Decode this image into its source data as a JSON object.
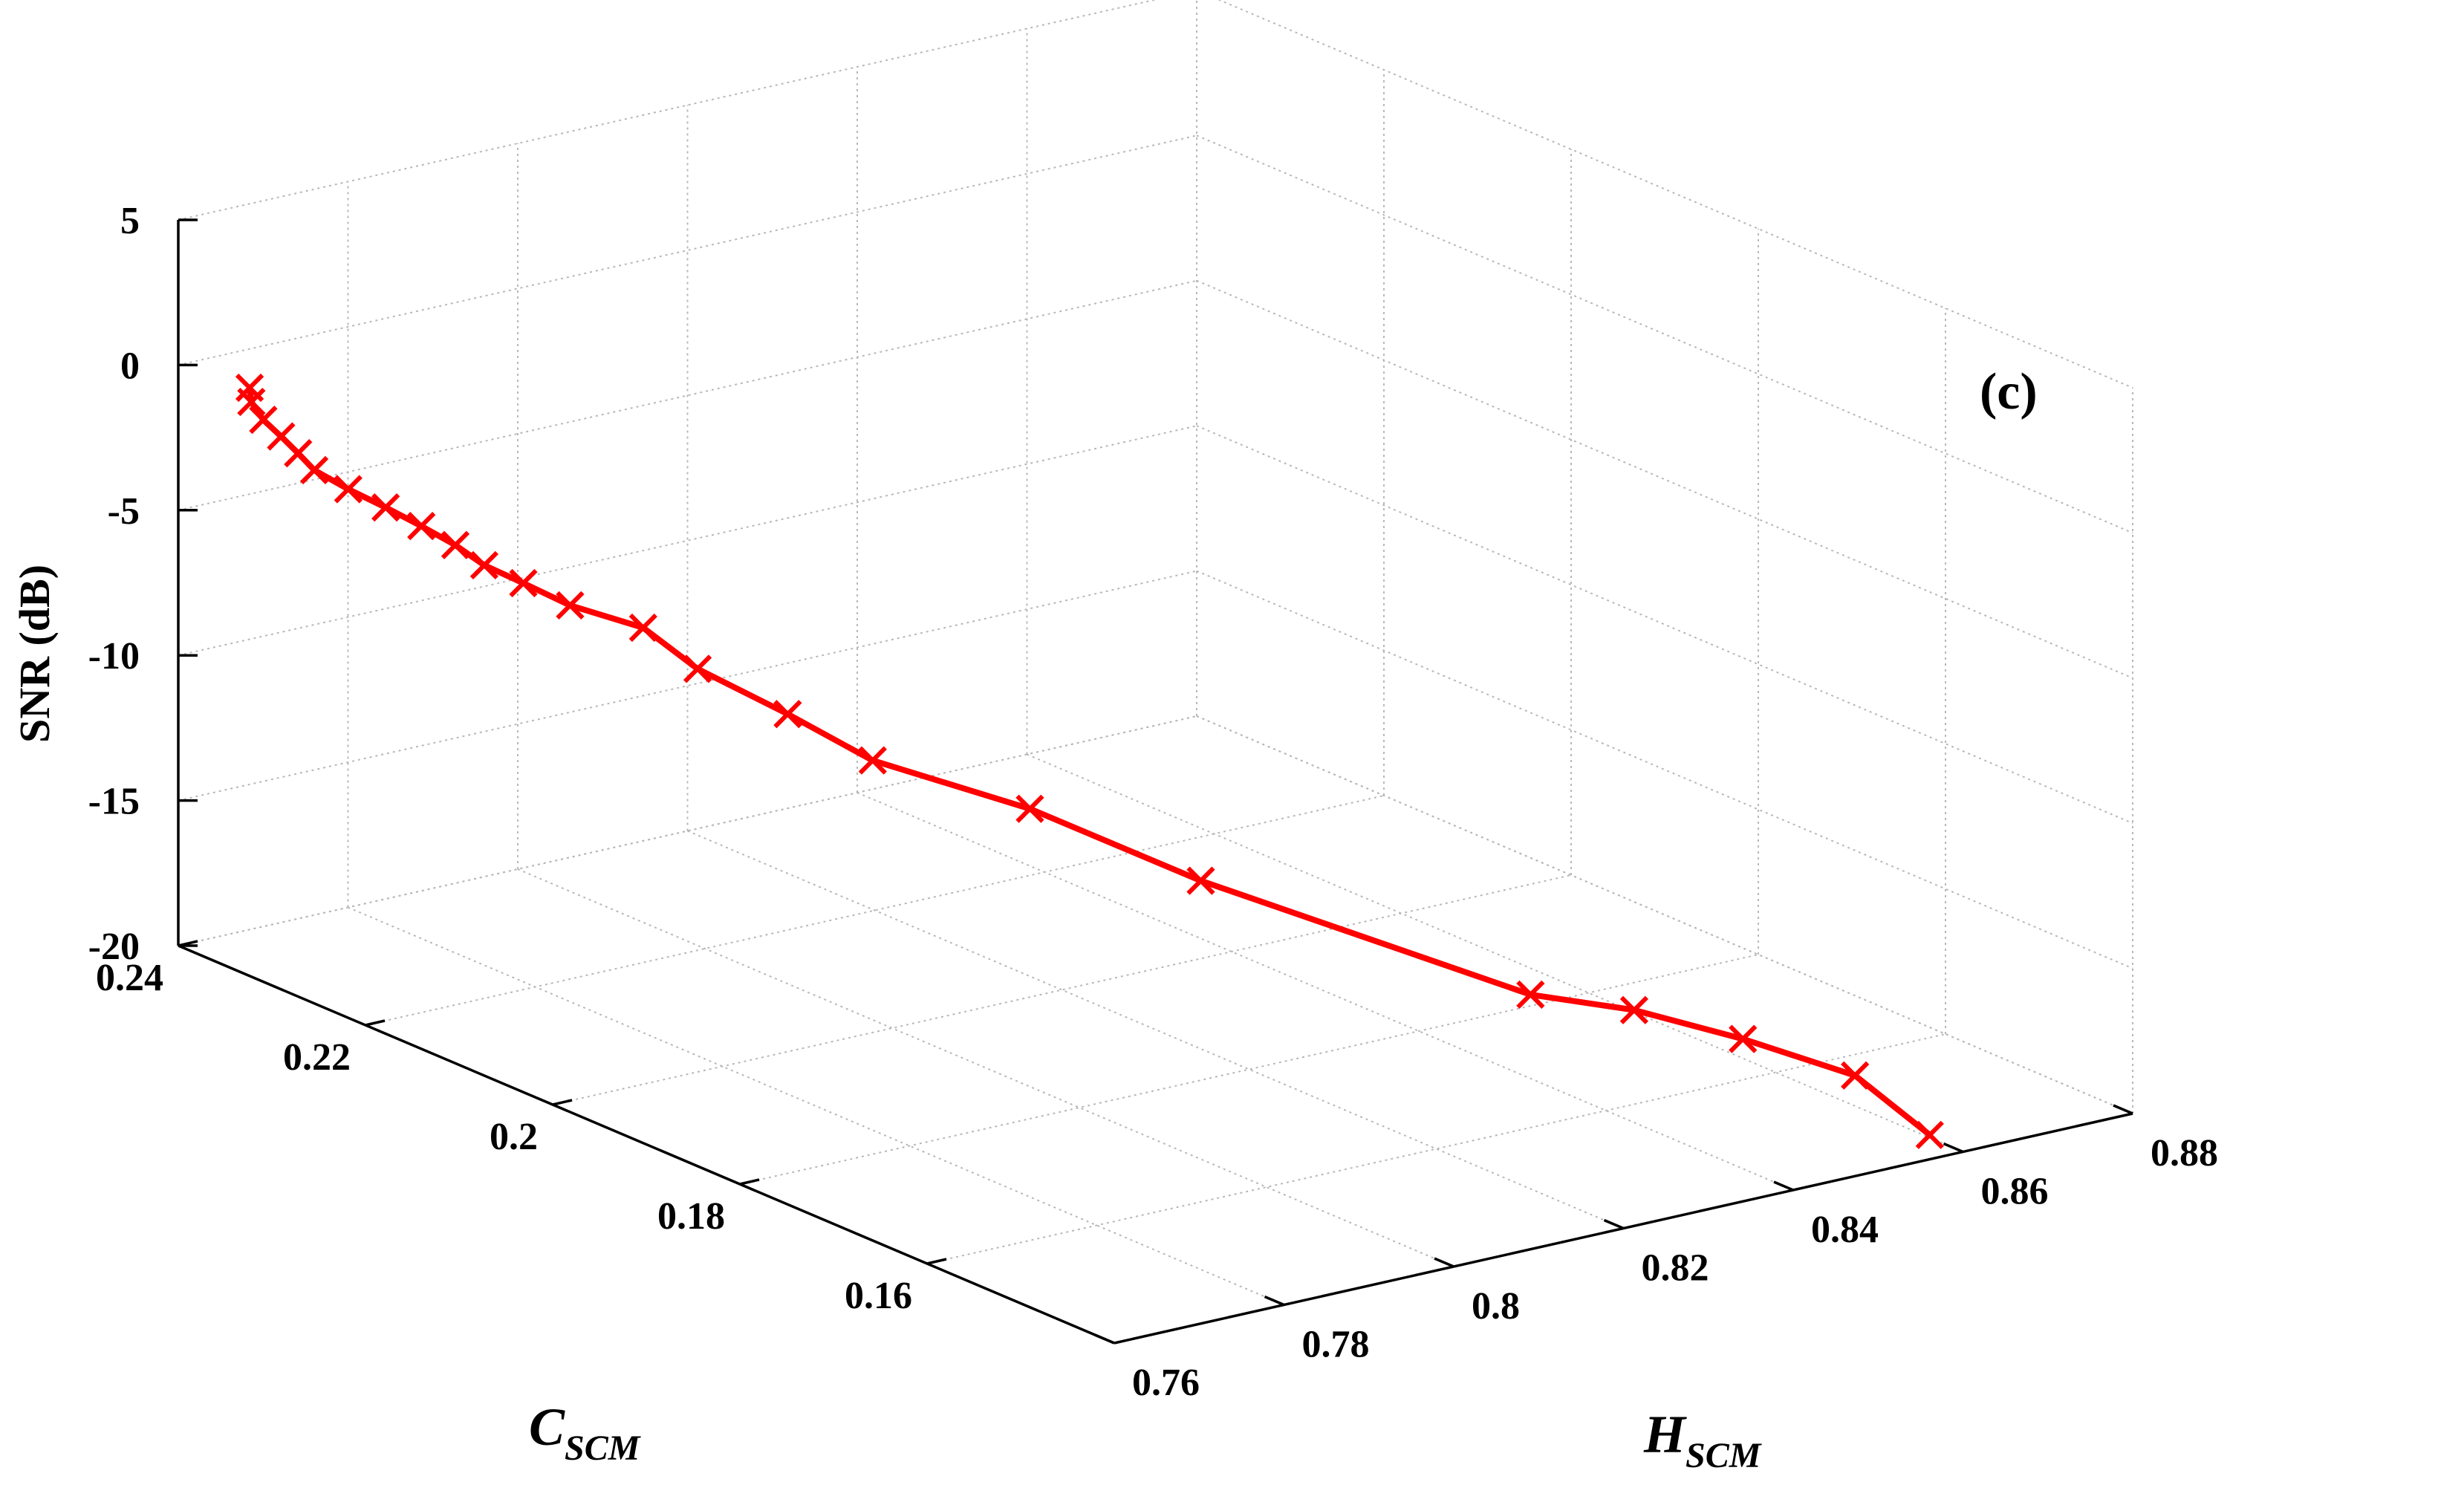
{
  "chart_data": {
    "type": "line",
    "subtype": "3d-line",
    "annotation": "(c)",
    "xlabel": {
      "main": "C",
      "sub": "SCM"
    },
    "ylabel": {
      "main": "H",
      "sub": "SCM"
    },
    "zlabel": "SNR (dB)",
    "xlim": [
      0.14,
      0.24
    ],
    "ylim": [
      0.76,
      0.88
    ],
    "zlim": [
      -20,
      5
    ],
    "xticks": [
      0.16,
      0.18,
      0.2,
      0.22,
      0.24
    ],
    "xtick_labels": [
      "0.16",
      "0.18",
      "0.2",
      "0.22",
      "0.24"
    ],
    "yticks": [
      0.76,
      0.78,
      0.8,
      0.82,
      0.84,
      0.86,
      0.88
    ],
    "ytick_labels": [
      "0.76",
      "0.78",
      "0.8",
      "0.82",
      "0.84",
      "0.86",
      "0.88"
    ],
    "zticks": [
      -20,
      -15,
      -10,
      -5,
      0,
      5
    ],
    "ztick_labels": [
      "-20",
      "-15",
      "-10",
      "-5",
      "0",
      "5"
    ],
    "grid": true,
    "colors": {
      "series": "#ff0000",
      "grid": "#b8b8b8",
      "axis": "#000000"
    },
    "series": [
      {
        "marker": "x",
        "points": [
          {
            "C": 0.236,
            "H": 0.764,
            "snr": -0.5
          },
          {
            "C": 0.236,
            "H": 0.7642,
            "snr": -1.0
          },
          {
            "C": 0.235,
            "H": 0.7645,
            "snr": -1.5
          },
          {
            "C": 0.234,
            "H": 0.7655,
            "snr": -2.0
          },
          {
            "C": 0.233,
            "H": 0.7664,
            "snr": -2.5
          },
          {
            "C": 0.232,
            "H": 0.7672,
            "snr": -3.0
          },
          {
            "C": 0.23,
            "H": 0.769,
            "snr": -3.5
          },
          {
            "C": 0.228,
            "H": 0.7712,
            "snr": -4.0
          },
          {
            "C": 0.226,
            "H": 0.7732,
            "snr": -4.5
          },
          {
            "C": 0.224,
            "H": 0.775,
            "snr": -5.0
          },
          {
            "C": 0.222,
            "H": 0.7762,
            "snr": -5.5
          },
          {
            "C": 0.22,
            "H": 0.7786,
            "snr": -6.0
          },
          {
            "C": 0.217,
            "H": 0.7808,
            "snr": -6.5
          },
          {
            "C": 0.213,
            "H": 0.785,
            "snr": -7.0
          },
          {
            "C": 0.209,
            "H": 0.787,
            "snr": -8.0
          },
          {
            "C": 0.203,
            "H": 0.791,
            "snr": -9.0
          },
          {
            "C": 0.197,
            "H": 0.7944,
            "snr": -10.0
          },
          {
            "C": 0.188,
            "H": 0.803,
            "snr": -11.0
          },
          {
            "C": 0.177,
            "H": 0.811,
            "snr": -12.5
          },
          {
            "C": 0.158,
            "H": 0.8289,
            "snr": -15.0
          },
          {
            "C": 0.154,
            "H": 0.8367,
            "snr": -15.5
          },
          {
            "C": 0.15,
            "H": 0.8451,
            "snr": -16.5
          },
          {
            "C": 0.147,
            "H": 0.855,
            "snr": -18.0
          },
          {
            "C": 0.144,
            "H": 0.8605,
            "snr": -20.0
          }
        ]
      }
    ]
  }
}
